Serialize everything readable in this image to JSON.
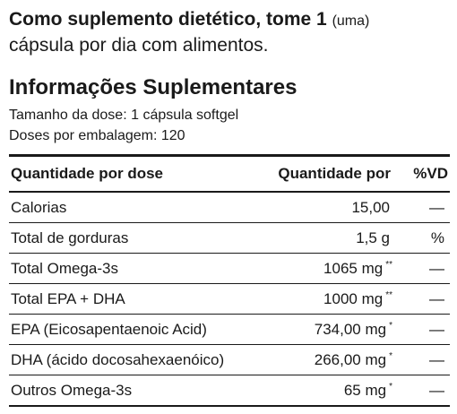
{
  "directions": {
    "bold": "Como suplemento dietético, tome 1",
    "small": "(uma)",
    "rest": "cápsula por dia com alimentos."
  },
  "panel": {
    "title": "Informações Suplementares",
    "serving_size": "Tamanho da dose: 1 cápsula softgel",
    "servings_per_container": "Doses por embalagem: 120",
    "headers": {
      "name": "Quantidade por dose",
      "amount": "Quantidade por",
      "dv": "%VD"
    },
    "rows": [
      {
        "name": "Calorias",
        "amount": "15,00",
        "mark": "",
        "dv": "—"
      },
      {
        "name": "Total de gorduras",
        "amount": "1,5 g",
        "mark": "",
        "dv": "%"
      },
      {
        "name": "Total Omega-3s",
        "amount": "1065 mg",
        "mark": "**",
        "dv": "—"
      },
      {
        "name": "Total EPA + DHA",
        "amount": "1000 mg",
        "mark": "**",
        "dv": "—"
      },
      {
        "name": "EPA (Eicosapentaenoic Acid)",
        "amount": "734,00 mg",
        "mark": "*",
        "dv": "—"
      },
      {
        "name": "DHA (ácido docosahexaenóico)",
        "amount": "266,00 mg",
        "mark": "*",
        "dv": "—"
      },
      {
        "name": "Outros Omega-3s",
        "amount": "65 mg",
        "mark": "*",
        "dv": "—"
      }
    ]
  }
}
